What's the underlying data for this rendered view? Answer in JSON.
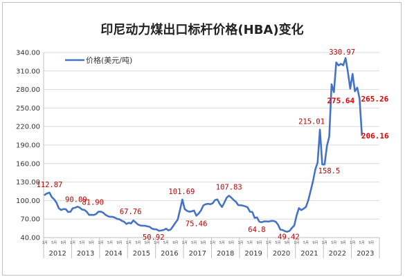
{
  "chart_data": {
    "type": "line",
    "title": "印尼动力煤出口标杆价格(HBA)变化",
    "xlabel": "",
    "ylabel": "",
    "ylim": [
      40,
      340
    ],
    "yticks": [
      "40.00",
      "70.00",
      "100.00",
      "130.00",
      "160.00",
      "190.00",
      "220.00",
      "250.00",
      "280.00",
      "310.00",
      "340.00"
    ],
    "years": [
      "2012",
      "2013",
      "2014",
      "2015",
      "2016",
      "2017",
      "2018",
      "2019",
      "2020",
      "2021",
      "2022",
      "2023"
    ],
    "month_tick_labels": [
      "1月",
      "5月",
      "9月"
    ],
    "legend": {
      "position": "top-left"
    },
    "grid": true,
    "series": [
      {
        "name": "价格(美元/吨)",
        "color": "#4472c4",
        "start": "2012-01",
        "values": [
          109.3,
          111.6,
          112.87,
          105.6,
          102.1,
          96.65,
          87.6,
          84.65,
          86.21,
          86.04,
          81.44,
          81.75,
          87.55,
          88.35,
          90.09,
          88.56,
          85.33,
          84.87,
          81.69,
          76.7,
          76.89,
          76.61,
          78.13,
          81.9,
          82.0,
          80.44,
          77.01,
          74.81,
          73.6,
          73.64,
          72.45,
          70.29,
          69.69,
          67.26,
          65.7,
          62.05,
          63.84,
          62.92,
          67.76,
          64.48,
          61.08,
          59.59,
          59.16,
          59.14,
          58.21,
          57.39,
          54.43,
          53.51,
          53.2,
          50.92,
          51.62,
          52.32,
          54.46,
          51.73,
          53.0,
          58.37,
          63.93,
          69.07,
          84.89,
          101.69,
          86.23,
          83.32,
          81.9,
          82.51,
          83.81,
          75.46,
          78.95,
          83.97,
          92.03,
          93.99,
          94.8,
          94.04,
          95.54,
          100.69,
          101.86,
          94.75,
          89.53,
          96.61,
          104.65,
          107.83,
          104.81,
          100.89,
          97.9,
          92.51,
          92.41,
          91.8,
          90.57,
          88.85,
          81.86,
          81.48,
          71.92,
          72.67,
          65.79,
          64.8,
          66.27,
          66.3,
          65.93,
          66.89,
          67.08,
          65.77,
          61.11,
          52.98,
          52.16,
          50.34,
          49.42,
          51.0,
          55.71,
          59.65,
          75.84,
          87.79,
          84.47,
          86.68,
          89.74,
          100.33,
          115.35,
          130.99,
          150.03,
          161.63,
          215.01,
          158.5,
          158.5,
          188.38,
          203.69,
          288.4,
          275.64,
          323.91,
          319.0,
          321.59,
          319.22,
          330.97,
          308.2,
          281.48,
          305.21,
          277.05,
          283.0,
          265.26,
          206.16
        ]
      }
    ],
    "annotations": [
      {
        "text": "112.87",
        "index": 2,
        "value": 112.87
      },
      {
        "text": "90.09",
        "index": 14,
        "value": 90.09
      },
      {
        "text": "81.90",
        "index": 23,
        "value": 81.9
      },
      {
        "text": "67.76",
        "index": 38,
        "value": 67.76
      },
      {
        "text": "50.92",
        "index": 49,
        "value": 50.92
      },
      {
        "text": "101.69",
        "index": 59,
        "value": 101.69
      },
      {
        "text": "75.46",
        "index": 65,
        "value": 75.46
      },
      {
        "text": "107.83",
        "index": 79,
        "value": 107.83
      },
      {
        "text": "64.8",
        "index": 93,
        "value": 64.8
      },
      {
        "text": "49.42",
        "index": 104,
        "value": 49.42
      },
      {
        "text": "215.01",
        "index": 118,
        "value": 215.01
      },
      {
        "text": "158.5",
        "index": 119,
        "value": 158.5
      },
      {
        "text": "330.97",
        "index": 129,
        "value": 330.97
      },
      {
        "text": "275.64",
        "index": 124,
        "value": 275.64
      },
      {
        "text": "265.26",
        "index": 135,
        "value": 265.26
      },
      {
        "text": "206.16",
        "index": 136,
        "value": 206.16
      }
    ]
  }
}
